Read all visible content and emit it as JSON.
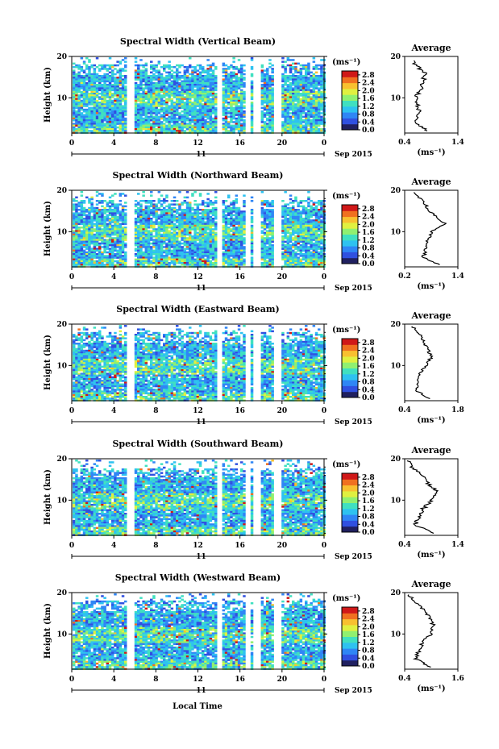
{
  "figure": {
    "date_label": "Sep 2015",
    "day_label": "11",
    "xlabel": "Local Time",
    "ylabel": "Height (km)",
    "unit_label": "(ms⁻¹)",
    "avg_title": "Average",
    "colormap": [
      "#202060",
      "#3050e0",
      "#2f86f5",
      "#2ec2f0",
      "#40e0c0",
      "#90f070",
      "#e0f040",
      "#f8c030",
      "#f07020",
      "#d01818"
    ]
  },
  "chart_data": [
    {
      "type": "heatmap",
      "title": "Spectral Width (Vertical Beam)",
      "x": [
        0,
        4,
        8,
        12,
        16,
        20,
        0
      ],
      "y": [
        10,
        20
      ],
      "xlabel": "",
      "ylabel": "Height (km)",
      "xlim": [
        0,
        24
      ],
      "ylim": [
        1.5,
        20
      ],
      "colorbar": {
        "ticks": [
          0.0,
          0.4,
          0.8,
          1.2,
          1.6,
          2.0,
          2.4,
          2.8
        ],
        "range": [
          0,
          3.0
        ]
      },
      "gap_hours": [
        5.6,
        14.0,
        16.7,
        17.6,
        19.6
      ],
      "average": {
        "title": "Average",
        "xlim": [
          0.4,
          1.4
        ],
        "xticks": [
          0.4,
          1.4
        ],
        "yticks": [
          10,
          20
        ],
        "height": [
          2,
          4,
          6,
          8,
          10,
          12,
          14,
          16,
          18,
          19
        ],
        "value": [
          0.85,
          0.6,
          0.68,
          0.64,
          0.6,
          0.72,
          0.75,
          0.78,
          0.6,
          0.55
        ]
      }
    },
    {
      "type": "heatmap",
      "title": "Spectral Width (Northward Beam)",
      "x": [
        0,
        4,
        8,
        12,
        16,
        20,
        0
      ],
      "y": [
        10,
        20
      ],
      "xlabel": "",
      "ylabel": "Height (km)",
      "xlim": [
        0,
        24
      ],
      "ylim": [
        1.5,
        20
      ],
      "colorbar": {
        "ticks": [
          0.0,
          0.4,
          0.8,
          1.2,
          1.6,
          2.0,
          2.4,
          2.8
        ],
        "range": [
          0,
          3.0
        ]
      },
      "gap_hours": [
        5.6,
        14.0,
        16.7,
        17.6,
        19.6
      ],
      "average": {
        "title": "Average",
        "xlim": [
          0.2,
          1.4
        ],
        "xticks": [
          0.2,
          1.4
        ],
        "yticks": [
          10,
          20
        ],
        "height": [
          2,
          4,
          6,
          8,
          10,
          12,
          14,
          16,
          18,
          19.5
        ],
        "value": [
          0.95,
          0.62,
          0.68,
          0.72,
          0.8,
          1.1,
          0.85,
          0.7,
          0.55,
          0.4
        ]
      }
    },
    {
      "type": "heatmap",
      "title": "Spectral Width (Eastward Beam)",
      "x": [
        0,
        4,
        8,
        12,
        16,
        20,
        0
      ],
      "y": [
        10,
        20
      ],
      "xlabel": "",
      "ylabel": "Height (km)",
      "xlim": [
        0,
        24
      ],
      "ylim": [
        1.5,
        20
      ],
      "colorbar": {
        "ticks": [
          0.0,
          0.4,
          0.8,
          1.2,
          1.6,
          2.0,
          2.4,
          2.8
        ],
        "range": [
          0,
          3.0
        ]
      },
      "gap_hours": [
        5.6,
        14.0,
        16.7,
        17.6,
        19.6
      ],
      "average": {
        "title": "Average",
        "xlim": [
          0.4,
          1.8
        ],
        "xticks": [
          0.4,
          1.8
        ],
        "yticks": [
          10,
          20
        ],
        "height": [
          2,
          4,
          6,
          8,
          10,
          12,
          14,
          16,
          18,
          19.5
        ],
        "value": [
          1.05,
          0.7,
          0.75,
          0.8,
          0.95,
          1.1,
          1.0,
          0.9,
          0.75,
          0.6
        ]
      }
    },
    {
      "type": "heatmap",
      "title": "Spectral Width (Southward Beam)",
      "x": [
        0,
        4,
        8,
        12,
        16,
        20,
        0
      ],
      "y": [
        10,
        20
      ],
      "xlabel": "",
      "ylabel": "Height (km)",
      "xlim": [
        0,
        24
      ],
      "ylim": [
        1.5,
        20
      ],
      "colorbar": {
        "ticks": [
          0.0,
          0.4,
          0.8,
          1.2,
          1.6,
          2.0,
          2.4,
          2.8
        ],
        "range": [
          0,
          3.0
        ]
      },
      "gap_hours": [
        5.6,
        14.0,
        16.7,
        17.6,
        19.6
      ],
      "average": {
        "title": "Average",
        "xlim": [
          0.4,
          1.4
        ],
        "xticks": [
          0.4,
          1.4
        ],
        "yticks": [
          10,
          20
        ],
        "height": [
          2,
          4,
          6,
          8,
          10,
          12,
          14,
          16,
          18,
          19.5
        ],
        "value": [
          0.95,
          0.6,
          0.68,
          0.75,
          0.9,
          1.0,
          0.85,
          0.72,
          0.55,
          0.45
        ]
      }
    },
    {
      "type": "heatmap",
      "title": "Spectral Width (Westward Beam)",
      "x": [
        0,
        4,
        8,
        12,
        16,
        20,
        0
      ],
      "y": [
        10,
        20
      ],
      "xlabel": "Local Time",
      "ylabel": "Height (km)",
      "xlim": [
        0,
        24
      ],
      "ylim": [
        1.5,
        20
      ],
      "colorbar": {
        "ticks": [
          0.0,
          0.4,
          0.8,
          1.2,
          1.6,
          2.0,
          2.4,
          2.8
        ],
        "range": [
          0,
          3.0
        ]
      },
      "gap_hours": [
        5.6,
        14.0,
        16.7,
        17.6,
        19.6
      ],
      "average": {
        "title": "Average",
        "xlim": [
          0.4,
          1.6
        ],
        "xticks": [
          0.4,
          1.6
        ],
        "yticks": [
          10,
          20
        ],
        "height": [
          2,
          4,
          6,
          8,
          10,
          12,
          14,
          16,
          18,
          19.5
        ],
        "value": [
          1.0,
          0.65,
          0.72,
          0.8,
          1.0,
          1.05,
          0.95,
          0.8,
          0.6,
          0.5
        ]
      }
    }
  ]
}
